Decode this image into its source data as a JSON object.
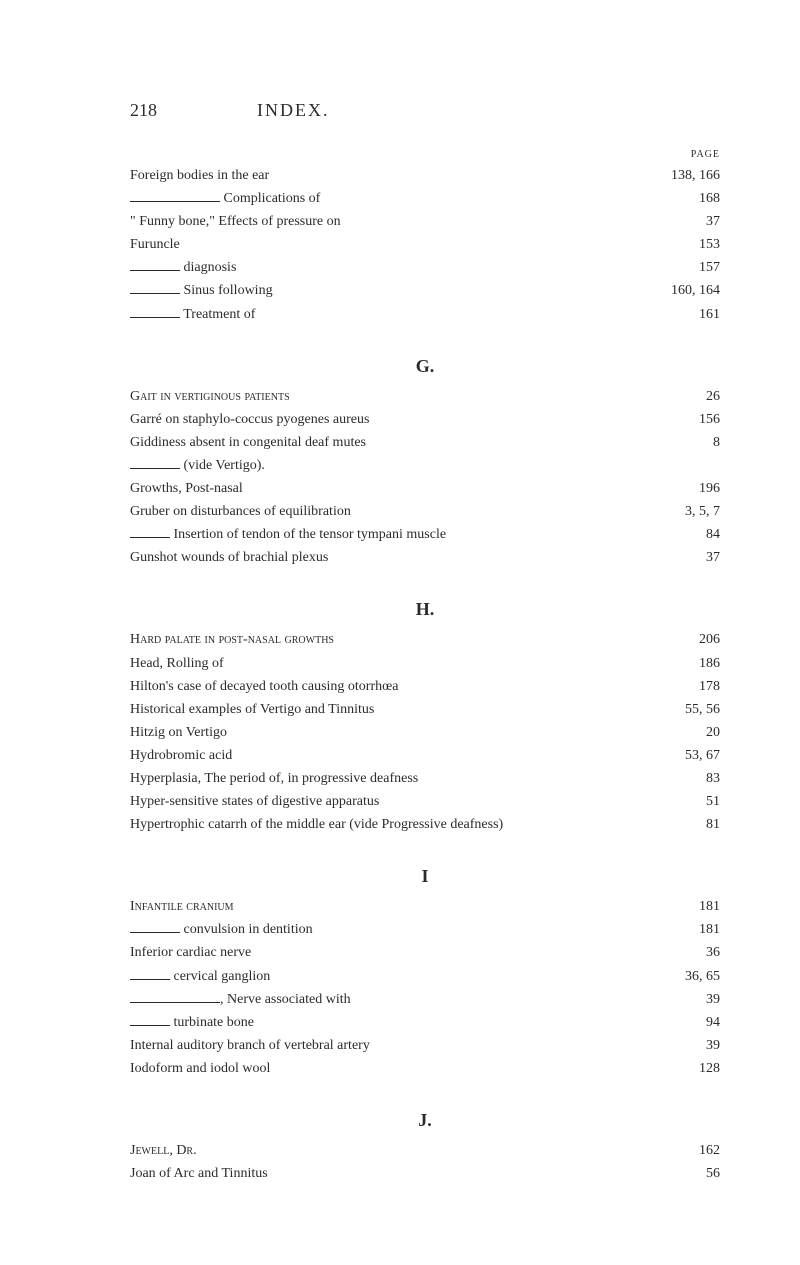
{
  "page_number": "218",
  "header_title": "INDEX.",
  "page_label": "PAGE",
  "sections": {
    "top": [
      {
        "text": "Foreign bodies in the ear",
        "page": "138, 166",
        "indent": 0,
        "rule": null
      },
      {
        "text": " Complications of",
        "page": "168",
        "indent": 0,
        "rule": "rule-90"
      },
      {
        "text": "\" Funny bone,\" Effects of pressure on",
        "page": "37",
        "indent": 0,
        "rule": null
      },
      {
        "text": "Furuncle",
        "page": "153",
        "indent": 0,
        "rule": null
      },
      {
        "text": " diagnosis",
        "page": "157",
        "indent": 0,
        "rule": "rule-50"
      },
      {
        "text": " Sinus following",
        "page": "160, 164",
        "indent": 0,
        "rule": "rule-50"
      },
      {
        "text": " Treatment of",
        "page": "161",
        "indent": 0,
        "rule": "rule-50"
      }
    ],
    "G": [
      {
        "text": "Gait in vertiginous patients",
        "page": "26",
        "indent": 0,
        "rule": null,
        "sc": true
      },
      {
        "text": "Garré on staphylo-coccus pyogenes aureus",
        "page": "156",
        "indent": 0,
        "rule": null
      },
      {
        "text": "Giddiness absent in congenital deaf mutes",
        "page": "8",
        "indent": 0,
        "rule": null
      },
      {
        "text": " (vide Vertigo).",
        "page": "",
        "indent": 0,
        "rule": "rule-50",
        "nodots": true
      },
      {
        "text": "Growths, Post-nasal",
        "page": "196",
        "indent": 0,
        "rule": null
      },
      {
        "text": "Gruber on disturbances of equilibration",
        "page": "3, 5, 7",
        "indent": 0,
        "rule": null
      },
      {
        "text": " Insertion of tendon of the tensor tympani muscle",
        "page": "84",
        "indent": 0,
        "rule": "rule-40"
      },
      {
        "text": "Gunshot wounds of brachial plexus",
        "page": "37",
        "indent": 0,
        "rule": null
      }
    ],
    "H": [
      {
        "text": "Hard palate in post-nasal growths",
        "page": "206",
        "indent": 0,
        "rule": null,
        "sc": true
      },
      {
        "text": "Head, Rolling of",
        "page": "186",
        "indent": 0,
        "rule": null
      },
      {
        "text": "Hilton's case of decayed tooth causing otorrhœa",
        "page": "178",
        "indent": 0,
        "rule": null
      },
      {
        "text": "Historical examples of Vertigo and Tinnitus",
        "page": "55, 56",
        "indent": 0,
        "rule": null
      },
      {
        "text": "Hitzig on Vertigo",
        "page": "20",
        "indent": 0,
        "rule": null
      },
      {
        "text": "Hydrobromic acid",
        "page": "53, 67",
        "indent": 0,
        "rule": null
      },
      {
        "text": "Hyperplasia, The period of, in progressive deafness",
        "page": "83",
        "indent": 0,
        "rule": null
      },
      {
        "text": "Hyper-sensitive states of digestive apparatus",
        "page": "51",
        "indent": 0,
        "rule": null
      },
      {
        "text": "Hypertrophic catarrh of the middle ear (vide Progressive deafness)",
        "page": "81",
        "indent": 0,
        "rule": null,
        "nodots": true
      }
    ],
    "I": [
      {
        "text": "Infantile cranium",
        "page": "181",
        "indent": 0,
        "rule": null,
        "sc": true
      },
      {
        "text": " convulsion in dentition",
        "page": "181",
        "indent": 0,
        "rule": "rule-50"
      },
      {
        "text": "Inferior cardiac nerve",
        "page": "36",
        "indent": 0,
        "rule": null
      },
      {
        "text": " cervical ganglion",
        "page": "36, 65",
        "indent": 0,
        "rule": "rule-40"
      },
      {
        "text": ", Nerve associated with",
        "page": "39",
        "indent": 0,
        "rule": "rule-90"
      },
      {
        "text": " turbinate bone",
        "page": "94",
        "indent": 0,
        "rule": "rule-40"
      },
      {
        "text": "Internal auditory branch of vertebral artery",
        "page": "39",
        "indent": 0,
        "rule": null
      },
      {
        "text": "Iodoform and iodol wool",
        "page": "128",
        "indent": 0,
        "rule": null
      }
    ],
    "J": [
      {
        "text": "Jewell, Dr.",
        "page": "162",
        "indent": 0,
        "rule": null,
        "sc": true
      },
      {
        "text": "Joan of Arc and Tinnitus",
        "page": "56",
        "indent": 0,
        "rule": null
      }
    ]
  },
  "section_letters": {
    "G": "G.",
    "H": "H.",
    "I": "I",
    "J": "J."
  }
}
